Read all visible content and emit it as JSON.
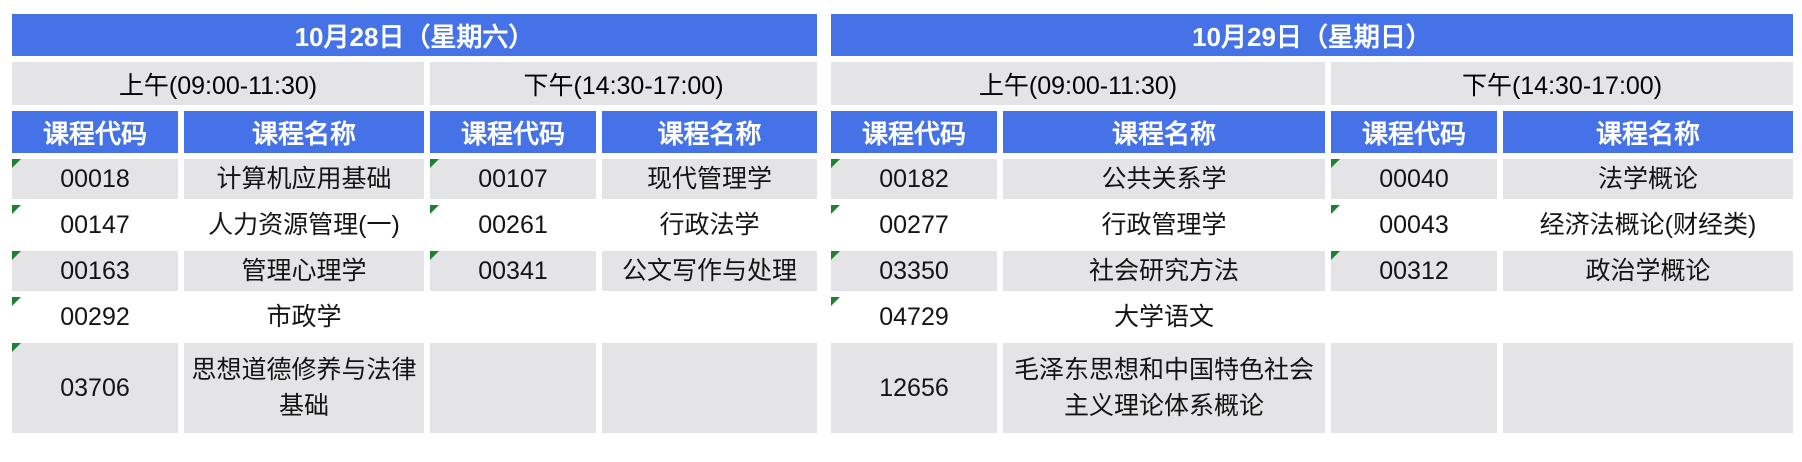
{
  "columns": {
    "code_label": "课程代码",
    "name_label": "课程名称"
  },
  "day1": {
    "title": "10月28日（星期六）",
    "am": "上午(09:00-11:30)",
    "pm": "下午(14:30-17:00)",
    "rows": [
      {
        "c1": "00018",
        "n1": "计算机应用基础",
        "c2": "00107",
        "n2": "现代管理学"
      },
      {
        "c1": "00147",
        "n1": "人力资源管理(一)",
        "c2": "00261",
        "n2": "行政法学"
      },
      {
        "c1": "00163",
        "n1": "管理心理学",
        "c2": "00341",
        "n2": "公文写作与处理"
      },
      {
        "c1": "00292",
        "n1": "市政学",
        "c2": "",
        "n2": ""
      },
      {
        "c1": "03706",
        "n1": "思想道德修养与法律基础",
        "c2": "",
        "n2": ""
      }
    ]
  },
  "day2": {
    "title": "10月29日（星期日）",
    "am": "上午(09:00-11:30)",
    "pm": "下午(14:30-17:00)",
    "rows": [
      {
        "c1": "00182",
        "n1": "公共关系学",
        "c2": "00040",
        "n2": "法学概论"
      },
      {
        "c1": "00277",
        "n1": "行政管理学",
        "c2": "00043",
        "n2": "经济法概论(财经类)"
      },
      {
        "c1": "03350",
        "n1": "社会研究方法",
        "c2": "00312",
        "n2": "政治学概论"
      },
      {
        "c1": "04729",
        "n1": "大学语文",
        "c2": "",
        "n2": ""
      },
      {
        "c1": "12656",
        "n1": "毛泽东思想和中国特色社会主义理论体系概论",
        "c2": "",
        "n2": ""
      }
    ]
  },
  "flags": {
    "day1": [
      [
        true,
        true
      ],
      [
        true,
        true
      ],
      [
        true,
        true
      ],
      [
        true,
        false
      ],
      [
        true,
        false
      ]
    ],
    "day2": [
      [
        true,
        true
      ],
      [
        true,
        true
      ],
      [
        true,
        true
      ],
      [
        true,
        false
      ],
      [
        false,
        false
      ]
    ]
  },
  "colors": {
    "header_blue": "#4573E7",
    "row_gray": "#E4E4E6",
    "flag_green": "#1E8032",
    "header_text": "#FFFFFF",
    "body_text": "#141414"
  }
}
